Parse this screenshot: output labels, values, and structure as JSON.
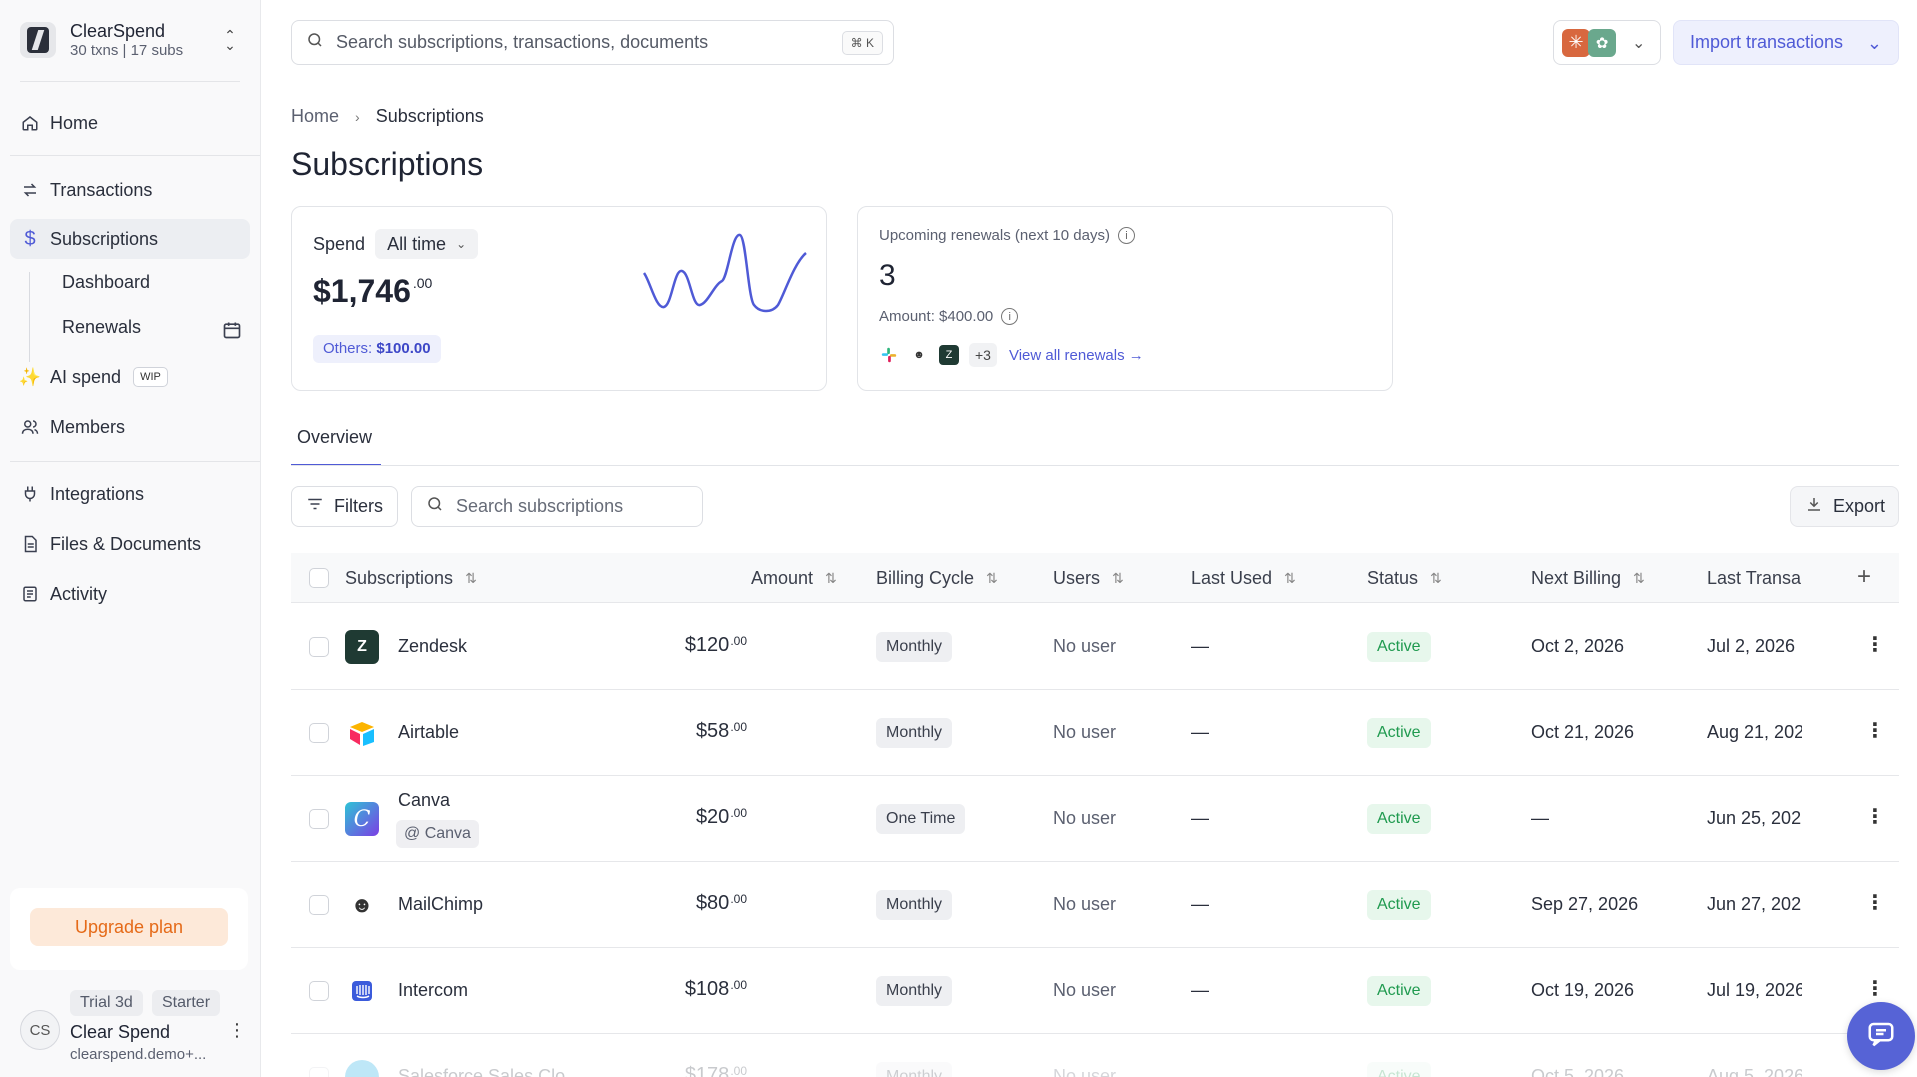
{
  "org": {
    "name": "ClearSpend",
    "meta": "30 txns | 17 subs"
  },
  "nav": {
    "home": "Home",
    "transactions": "Transactions",
    "subscriptions": "Subscriptions",
    "dashboard": "Dashboard",
    "renewals": "Renewals",
    "ai_spend": "AI spend",
    "ai_badge": "WIP",
    "members": "Members",
    "integrations": "Integrations",
    "files": "Files & Documents",
    "activity": "Activity"
  },
  "upgrade": {
    "label": "Upgrade plan"
  },
  "user": {
    "initials": "CS",
    "badge_trial": "Trial 3d",
    "badge_plan": "Starter",
    "name": "Clear Spend",
    "email": "clearspend.demo+..."
  },
  "search": {
    "placeholder": "Search subscriptions, transactions, documents",
    "shortcut": "⌘ K"
  },
  "import": {
    "label": "Import transactions"
  },
  "breadcrumb": {
    "home": "Home",
    "current": "Subscriptions"
  },
  "page": {
    "title": "Subscriptions"
  },
  "spend_card": {
    "label": "Spend",
    "period": "All time",
    "amount_main": "$1,746",
    "amount_cents": ".00",
    "others_label": "Others:",
    "others_value": "$100.00"
  },
  "renew_card": {
    "label": "Upcoming renewals (next 10 days)",
    "count": "3",
    "amount": "Amount: $400.00",
    "more": "+3",
    "view_all": "View all renewals →"
  },
  "tabs": {
    "overview": "Overview"
  },
  "toolbar": {
    "filters": "Filters",
    "search_placeholder": "Search subscriptions",
    "export": "Export"
  },
  "table": {
    "headers": {
      "subscriptions": "Subscriptions",
      "amount": "Amount",
      "billing": "Billing Cycle",
      "users": "Users",
      "last_used": "Last Used",
      "status": "Status",
      "next_billing": "Next Billing",
      "last_transaction": "Last Transa"
    },
    "rows": [
      {
        "name": "Zendesk",
        "amount": "$120",
        "cents": ".00",
        "cycle": "Monthly",
        "users": "No user",
        "last_used": "—",
        "status": "Active",
        "next": "Oct 2, 2026",
        "last_tx": "Jul 2, 2026"
      },
      {
        "name": "Airtable",
        "amount": "$58",
        "cents": ".00",
        "cycle": "Monthly",
        "users": "No user",
        "last_used": "—",
        "status": "Active",
        "next": "Oct 21, 2026",
        "last_tx": "Aug 21, 202"
      },
      {
        "name": "Canva",
        "tag": "@ Canva",
        "amount": "$20",
        "cents": ".00",
        "cycle": "One Time",
        "users": "No user",
        "last_used": "—",
        "status": "Active",
        "next": "—",
        "last_tx": "Jun 25, 202"
      },
      {
        "name": "MailChimp",
        "amount": "$80",
        "cents": ".00",
        "cycle": "Monthly",
        "users": "No user",
        "last_used": "—",
        "status": "Active",
        "next": "Sep 27, 2026",
        "last_tx": "Jun 27, 202"
      },
      {
        "name": "Intercom",
        "amount": "$108",
        "cents": ".00",
        "cycle": "Monthly",
        "users": "No user",
        "last_used": "—",
        "status": "Active",
        "next": "Oct 19, 2026",
        "last_tx": "Jul 19, 2026"
      },
      {
        "name": "Salesforce Sales Clo",
        "amount": "$178",
        "cents": ".00",
        "cycle": "Monthly",
        "users": "No user",
        "last_used": "—",
        "status": "Active",
        "next": "Oct 5, 2026",
        "last_tx": "Aug 5, 2026"
      }
    ]
  },
  "colors": {
    "accent": "#4f5ad6",
    "upgrade": "#e56a18",
    "active": "#1f9a4f"
  }
}
